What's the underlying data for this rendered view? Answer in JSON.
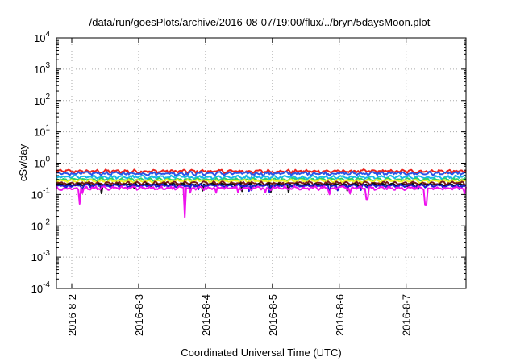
{
  "chart_data": {
    "type": "line",
    "title": "/data/run/goesPlots/archive/2016-08-07/19:00/flux/../bryn/5daysMoon.plot",
    "xlabel": "Coordinated Universal Time (UTC)",
    "ylabel": "cSv/day",
    "yscale": "log",
    "ylim": [
      0.0001,
      10000
    ],
    "xlim": [
      "2016-08-01T18:30",
      "2016-08-07T21:30"
    ],
    "grid": true,
    "x_ticks": [
      "2016-8-2",
      "2016-8-3",
      "2016-8-4",
      "2016-8-5",
      "2016-8-6",
      "2016-8-7"
    ],
    "y_ticks": [
      {
        "value": 0.0001,
        "base": "10",
        "exp": "-4"
      },
      {
        "value": 0.001,
        "base": "10",
        "exp": "-3"
      },
      {
        "value": 0.01,
        "base": "10",
        "exp": "-2"
      },
      {
        "value": 0.1,
        "base": "10",
        "exp": "-1"
      },
      {
        "value": 1,
        "base": "10",
        "exp": "0"
      },
      {
        "value": 10,
        "base": "10",
        "exp": "1"
      },
      {
        "value": 100,
        "base": "10",
        "exp": "2"
      },
      {
        "value": 1000,
        "base": "10",
        "exp": "3"
      },
      {
        "value": 10000,
        "base": "10",
        "exp": "4"
      }
    ],
    "series": [
      {
        "color": "#e8221c",
        "level": 0.55,
        "noise": 0.09
      },
      {
        "color": "#2a56e6",
        "level": 0.47,
        "noise": 0.08
      },
      {
        "color": "#17b7e8",
        "level": 0.36,
        "noise": 0.05
      },
      {
        "color": "#2fd06a",
        "level": 0.3,
        "noise": 0.03
      },
      {
        "color": "#f4f22a",
        "level": 0.27,
        "noise": 0.03
      },
      {
        "color": "#7a1a1a",
        "level": 0.23,
        "noise": 0.03
      },
      {
        "color": "#111111",
        "level": 0.205,
        "noise": 0.02
      },
      {
        "color": "#1c1cd4",
        "level": 0.19,
        "noise": 0.02
      },
      {
        "color": "#ee12ee",
        "level": 0.16,
        "noise": 0.025
      }
    ],
    "dips": [
      {
        "series": 8,
        "x": "2016-08-02T03:00",
        "y": 0.05
      },
      {
        "series": 8,
        "x": "2016-08-03T16:30",
        "y": 0.019
      },
      {
        "series": 8,
        "x": "2016-08-06T10:00",
        "y": 0.07
      },
      {
        "series": 8,
        "x": "2016-08-07T07:00",
        "y": 0.045
      }
    ]
  }
}
